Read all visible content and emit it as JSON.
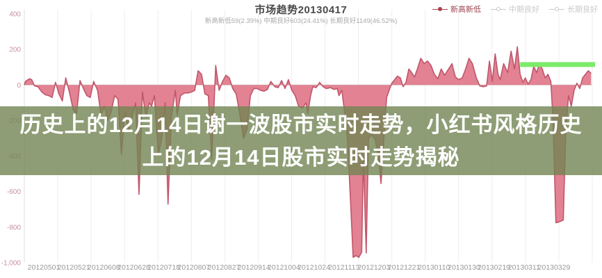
{
  "header": {
    "title": "市场趋势20130417",
    "subtitle": "新高新低59(2.39%) 中期良好603(24.41%) 长期良好1149(46.52%)"
  },
  "legend": {
    "items": [
      {
        "label": "新高新低",
        "active": true,
        "color": "#a8414d"
      },
      {
        "label": "中期良好",
        "active": false,
        "color": "#c9c9c9"
      },
      {
        "label": "长期良好",
        "active": false,
        "color": "#c9c9c9"
      }
    ]
  },
  "overlay": {
    "line1": "历史上的12月14日谢一波股市实时走势，小红书风格历史",
    "line2": "上的12月14日股市实时走势揭秘",
    "bg_color": "rgba(114,133,82,0.80)",
    "text_color": "#ffffff"
  },
  "chart_data": {
    "type": "area",
    "title": "市场趋势20130417",
    "series_name": "新高新低",
    "ylim": [
      -1000,
      400
    ],
    "grid": "vertical-only",
    "legend_position": "top-right",
    "area_fill": "#e28292",
    "line_color": "#c0566b",
    "axis_color": "#cccccc",
    "grid_color": "#ededed",
    "y_label_color": "#c5919c",
    "x_label_color": "#999999",
    "y_ticks": [
      {
        "value": 400,
        "label": "400"
      },
      {
        "value": 200,
        "label": "200"
      },
      {
        "value": 0,
        "label": "0"
      },
      {
        "value": -200,
        "label": "-200"
      },
      {
        "value": -400,
        "label": "-400"
      },
      {
        "value": -600,
        "label": "-600"
      },
      {
        "value": -800,
        "label": "-800"
      },
      {
        "value": -1000,
        "label": "-1,000"
      }
    ],
    "x_ticks": [
      "20120501",
      "20120521",
      "20120608",
      "20120628",
      "20120718",
      "20120807",
      "20120827",
      "20120914",
      "20121004",
      "20121024",
      "20121113",
      "20121203",
      "20121221",
      "20130110",
      "20130130",
      "20130219",
      "20130311",
      "20130329"
    ],
    "annotation_line": {
      "color": "#7ceb6a",
      "value": 115,
      "start_frac": 0.873,
      "end_frac": 1.005,
      "thickness": 7
    },
    "points": [
      [
        0.0,
        0
      ],
      [
        0.002,
        20
      ],
      [
        0.009,
        35
      ],
      [
        0.013,
        30
      ],
      [
        0.018,
        -5
      ],
      [
        0.024,
        -10
      ],
      [
        0.031,
        -40
      ],
      [
        0.037,
        -55
      ],
      [
        0.043,
        -60
      ],
      [
        0.049,
        -70
      ],
      [
        0.055,
        15
      ],
      [
        0.061,
        -50
      ],
      [
        0.067,
        -90
      ],
      [
        0.073,
        40
      ],
      [
        0.08,
        -50
      ],
      [
        0.086,
        -140
      ],
      [
        0.092,
        -160
      ],
      [
        0.098,
        25
      ],
      [
        0.104,
        -20
      ],
      [
        0.11,
        -60
      ],
      [
        0.116,
        -70
      ],
      [
        0.122,
        20
      ],
      [
        0.129,
        -30
      ],
      [
        0.135,
        -170
      ],
      [
        0.141,
        -120
      ],
      [
        0.147,
        -200
      ],
      [
        0.153,
        -150
      ],
      [
        0.159,
        -60
      ],
      [
        0.165,
        -80
      ],
      [
        0.171,
        -390
      ],
      [
        0.177,
        -150
      ],
      [
        0.184,
        -260
      ],
      [
        0.19,
        -180
      ],
      [
        0.196,
        -100
      ],
      [
        0.202,
        -615
      ],
      [
        0.208,
        -40
      ],
      [
        0.214,
        -180
      ],
      [
        0.22,
        -100
      ],
      [
        0.224,
        -120
      ],
      [
        0.229,
        -60
      ],
      [
        0.236,
        -390
      ],
      [
        0.242,
        -300
      ],
      [
        0.248,
        -100
      ],
      [
        0.253,
        -670
      ],
      [
        0.259,
        -180
      ],
      [
        0.266,
        -30
      ],
      [
        0.269,
        -170
      ],
      [
        0.275,
        -60
      ],
      [
        0.282,
        -45
      ],
      [
        0.288,
        -45
      ],
      [
        0.294,
        -40
      ],
      [
        0.3,
        -30
      ],
      [
        0.306,
        80
      ],
      [
        0.312,
        60
      ],
      [
        0.318,
        -50
      ],
      [
        0.324,
        -60
      ],
      [
        0.33,
        -420
      ],
      [
        0.337,
        110
      ],
      [
        0.343,
        -30
      ],
      [
        0.349,
        20
      ],
      [
        0.355,
        55
      ],
      [
        0.361,
        40
      ],
      [
        0.367,
        -20
      ],
      [
        0.373,
        -50
      ],
      [
        0.379,
        -155
      ],
      [
        0.386,
        -300
      ],
      [
        0.392,
        -250
      ],
      [
        0.398,
        -60
      ],
      [
        0.404,
        -20
      ],
      [
        0.41,
        -20
      ],
      [
        0.416,
        -30
      ],
      [
        0.422,
        -35
      ],
      [
        0.428,
        -25
      ],
      [
        0.434,
        20
      ],
      [
        0.441,
        -10
      ],
      [
        0.447,
        -15
      ],
      [
        0.453,
        25
      ],
      [
        0.459,
        -20
      ],
      [
        0.465,
        30
      ],
      [
        0.471,
        -30
      ],
      [
        0.477,
        -60
      ],
      [
        0.483,
        -120
      ],
      [
        0.49,
        -130
      ],
      [
        0.496,
        -100
      ],
      [
        0.499,
        -160
      ],
      [
        0.504,
        -60
      ],
      [
        0.508,
        -10
      ],
      [
        0.514,
        -15
      ],
      [
        0.52,
        15
      ],
      [
        0.526,
        -10
      ],
      [
        0.532,
        -20
      ],
      [
        0.539,
        -15
      ],
      [
        0.545,
        -25
      ],
      [
        0.551,
        -20
      ],
      [
        0.554,
        -60
      ],
      [
        0.559,
        -30
      ],
      [
        0.563,
        -130
      ],
      [
        0.569,
        -300
      ],
      [
        0.575,
        -700
      ],
      [
        0.579,
        -970
      ],
      [
        0.584,
        -960
      ],
      [
        0.589,
        -970
      ],
      [
        0.594,
        -940
      ],
      [
        0.597,
        -400
      ],
      [
        0.602,
        -945
      ],
      [
        0.606,
        -300
      ],
      [
        0.612,
        -280
      ],
      [
        0.618,
        -310
      ],
      [
        0.624,
        -420
      ],
      [
        0.628,
        -555
      ],
      [
        0.633,
        -300
      ],
      [
        0.638,
        -70
      ],
      [
        0.643,
        -25
      ],
      [
        0.647,
        10
      ],
      [
        0.652,
        30
      ],
      [
        0.657,
        50
      ],
      [
        0.662,
        40
      ],
      [
        0.667,
        -10
      ],
      [
        0.672,
        15
      ],
      [
        0.677,
        90
      ],
      [
        0.682,
        70
      ],
      [
        0.687,
        45
      ],
      [
        0.692,
        90
      ],
      [
        0.698,
        150
      ],
      [
        0.704,
        120
      ],
      [
        0.71,
        135
      ],
      [
        0.716,
        110
      ],
      [
        0.722,
        60
      ],
      [
        0.728,
        35
      ],
      [
        0.734,
        90
      ],
      [
        0.74,
        55
      ],
      [
        0.747,
        90
      ],
      [
        0.753,
        120
      ],
      [
        0.759,
        45
      ],
      [
        0.765,
        30
      ],
      [
        0.771,
        40
      ],
      [
        0.777,
        90
      ],
      [
        0.783,
        150
      ],
      [
        0.789,
        120
      ],
      [
        0.796,
        40
      ],
      [
        0.802,
        -5
      ],
      [
        0.808,
        -10
      ],
      [
        0.814,
        -5
      ],
      [
        0.819,
        135
      ],
      [
        0.824,
        20
      ],
      [
        0.829,
        175
      ],
      [
        0.834,
        60
      ],
      [
        0.838,
        30
      ],
      [
        0.844,
        120
      ],
      [
        0.851,
        70
      ],
      [
        0.857,
        190
      ],
      [
        0.863,
        90
      ],
      [
        0.868,
        215
      ],
      [
        0.873,
        60
      ],
      [
        0.878,
        15
      ],
      [
        0.882,
        40
      ],
      [
        0.887,
        5
      ],
      [
        0.892,
        30
      ],
      [
        0.897,
        105
      ],
      [
        0.902,
        70
      ],
      [
        0.907,
        118
      ],
      [
        0.912,
        90
      ],
      [
        0.917,
        40
      ],
      [
        0.922,
        60
      ],
      [
        0.927,
        20
      ],
      [
        0.931,
        -200
      ],
      [
        0.936,
        -775
      ],
      [
        0.942,
        -770
      ],
      [
        0.949,
        -760
      ],
      [
        0.953,
        -300
      ],
      [
        0.958,
        -60
      ],
      [
        0.963,
        -120
      ],
      [
        0.968,
        -30
      ],
      [
        0.973,
        10
      ],
      [
        0.978,
        -20
      ],
      [
        0.983,
        40
      ],
      [
        0.988,
        60
      ],
      [
        0.993,
        80
      ],
      [
        0.998,
        65
      ]
    ]
  }
}
